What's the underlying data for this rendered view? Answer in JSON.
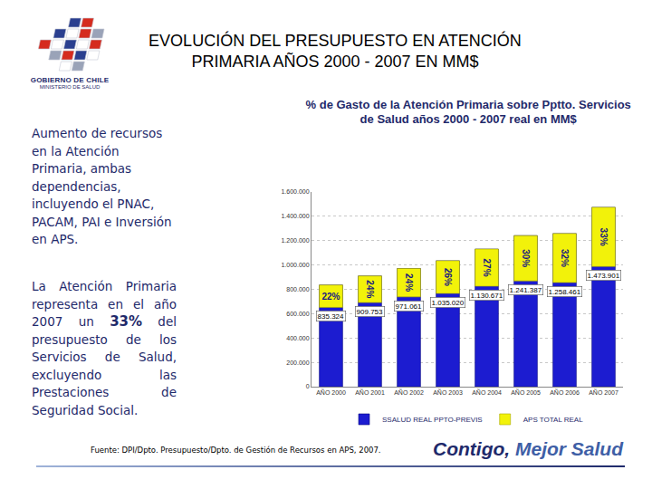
{
  "header": {
    "logo_lines": [
      "GOBIERNO DE CHILE",
      "MINISTERIO DE SALUD"
    ],
    "title_lines": [
      "EVOLUCIÓN DEL PRESUPUESTO EN ATENCIÓN",
      "PRIMARIA AÑOS 2000 - 2007 EN MM$"
    ]
  },
  "text": {
    "paragraph_1": "Aumento de recursos en la Atención Primaria, ambas dependencias, incluyendo el PNAC, PACAM, PAI e Inversión en APS.",
    "paragraph_2": {
      "before": "La Atención Primaria representa en el año 2007 un ",
      "emphasis": "33%",
      "after": " del presupuesto de los Servicios de Salud, excluyendo las Prestaciones de Seguridad Social."
    }
  },
  "chart_data": {
    "type": "bar",
    "title": "% de Gasto de la Atención Primaria sobre Pptto. Servicios\nde Salud años 2000 - 2007 real en MM$",
    "categories": [
      "AÑO 2000",
      "AÑO 2001",
      "AÑO 2002",
      "AÑO 2003",
      "AÑO 2004",
      "AÑO 2005",
      "AÑO 2006",
      "AÑO 2007"
    ],
    "series": [
      {
        "name": "SSALUD REAL PPTO-PREVIS",
        "color": "#1c1cd0",
        "values": [
          835324,
          909753,
          971061,
          1035020,
          1130671,
          1241387,
          1258461,
          1473901
        ],
        "value_labels": [
          "835.324",
          "909.753",
          "971.061",
          "1.035.020",
          "1.130.671",
          "1.241.387",
          "1.258.461",
          "1.473.901"
        ]
      },
      {
        "name": "APS TOTAL REAL",
        "color": "#f2f20a",
        "values": [
          22,
          24,
          24,
          26,
          27,
          30,
          32,
          33
        ],
        "value_labels": [
          "22%",
          "24%",
          "24%",
          "26%",
          "27%",
          "30%",
          "32%",
          "33%"
        ]
      }
    ],
    "ylim": [
      0,
      1600000
    ],
    "yticks": [
      0,
      {
        "value": 200000,
        "label": "200.000"
      },
      {
        "value": 400000,
        "label": "400.000"
      },
      {
        "value": 600000,
        "label": "600.000"
      },
      {
        "value": 800000,
        "label": "800.000"
      },
      {
        "value": 1000000,
        "label": "1.000.000"
      },
      {
        "value": 1200000,
        "label": "1.200.000"
      },
      {
        "value": 1400000,
        "label": "1.400.000"
      },
      {
        "value": 1600000,
        "label": "1.600.000"
      }
    ],
    "grid": true,
    "legend": "bottom",
    "data_labels": true
  },
  "footer": {
    "source": "Fuente: DPI/Dpto. Presupuesto/Dpto. de Gestión de Recursos en APS, 2007.",
    "slogan": [
      "Contigo,",
      "Mejor Salud"
    ]
  }
}
